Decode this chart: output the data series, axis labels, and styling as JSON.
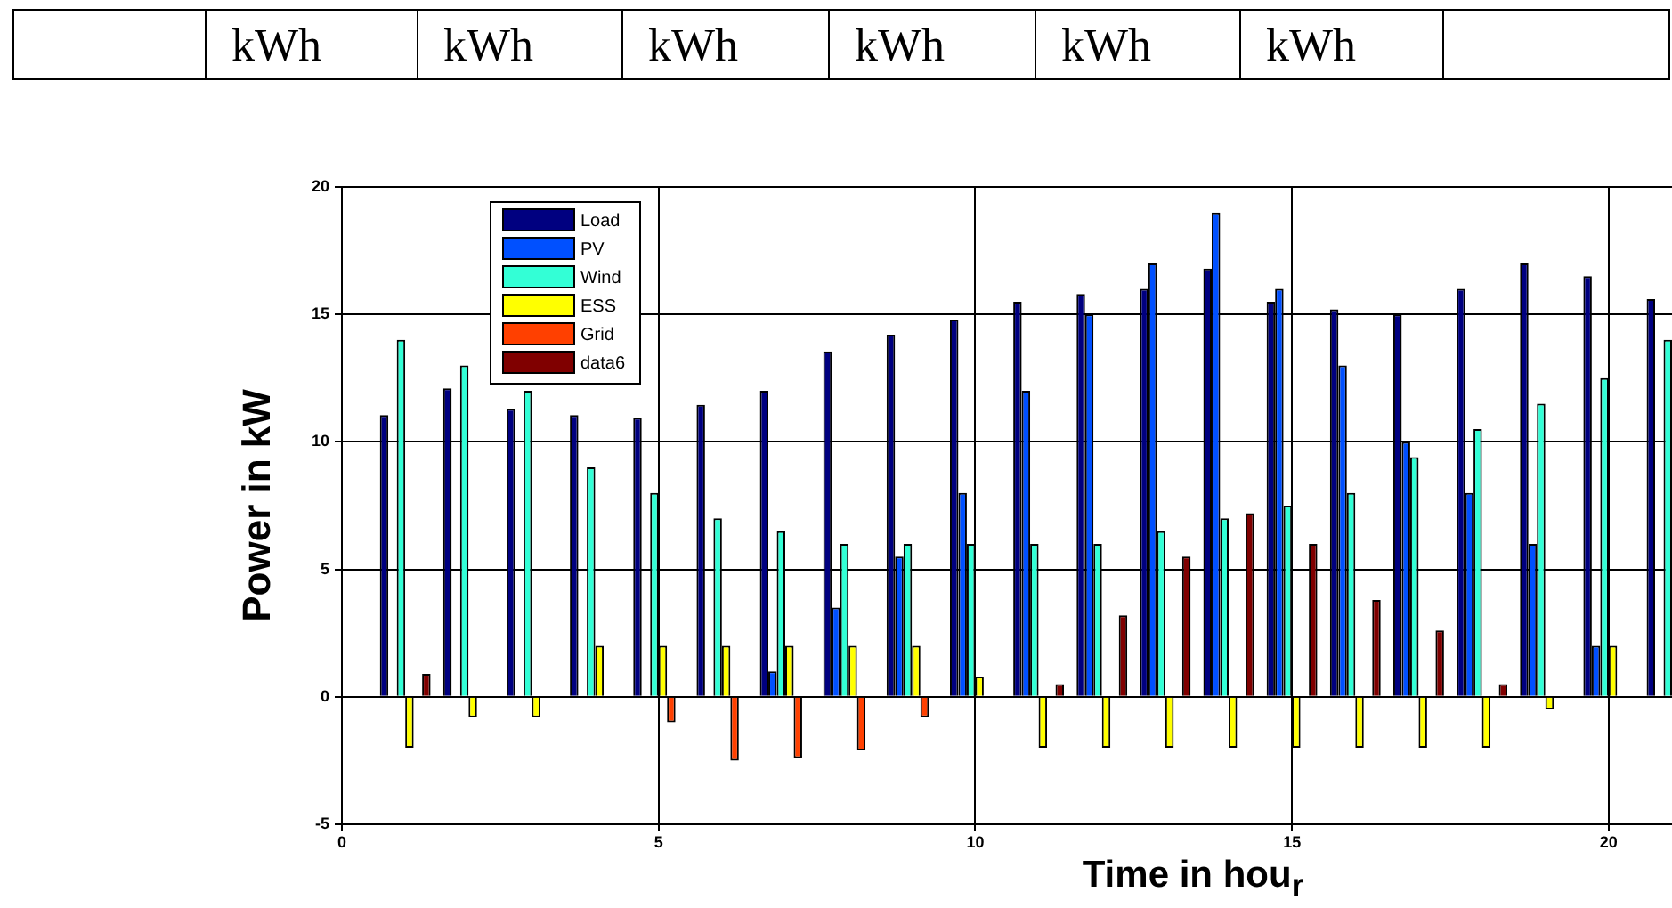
{
  "chart_data": {
    "type": "bar",
    "xlabel": "Time in hou$_{r}$",
    "ylabel": "Power in kW",
    "annotations": [
      "kWh",
      "kWh",
      "kWh",
      "kWh",
      "kWh",
      "kWh"
    ],
    "x": [
      1,
      2,
      3,
      4,
      5,
      6,
      7,
      8,
      9,
      10,
      11,
      12,
      13,
      14,
      15,
      16,
      17,
      18,
      19,
      20,
      21
    ],
    "series": [
      {
        "name": "Load",
        "color": "#000080",
        "values": [
          11.05,
          12.1,
          11.3,
          11.05,
          10.95,
          11.45,
          12,
          13.55,
          14.2,
          14.8,
          15.5,
          15.8,
          16,
          16.8,
          15.5,
          15.2,
          15,
          16,
          17,
          16.5,
          15.6
        ]
      },
      {
        "name": "PV",
        "color": "#0050ff",
        "values": [
          0,
          0,
          0,
          0,
          0,
          0,
          1,
          3.5,
          5.5,
          8,
          12,
          15,
          17,
          19,
          16,
          13,
          10,
          8,
          6,
          2,
          null
        ]
      },
      {
        "name": "Wind",
        "color": "#33ffd6",
        "values": [
          14,
          13,
          12,
          9,
          8,
          7,
          6.5,
          6,
          6,
          6,
          6,
          6,
          6.5,
          7,
          7.5,
          8,
          9.4,
          10.5,
          11.5,
          12.5,
          14
        ]
      },
      {
        "name": "ESS",
        "color": "#ffff00",
        "values": [
          -2,
          -0.8,
          -0.8,
          2,
          2,
          2,
          2,
          2,
          2,
          0.8,
          -2,
          -2,
          -2,
          -2,
          -2,
          -2,
          -2,
          -2,
          -0.5,
          2,
          null
        ]
      },
      {
        "name": "Grid",
        "color": "#ff4000",
        "values": [
          0,
          0,
          0,
          0,
          -1,
          -2.5,
          -2.4,
          -2.1,
          -0.8,
          0,
          0,
          0,
          0,
          0,
          0,
          0,
          0,
          0,
          0,
          0,
          null
        ]
      },
      {
        "name": "data6",
        "color": "#800000",
        "values": [
          0.9,
          0,
          0,
          0,
          0,
          0,
          0,
          0,
          0,
          0,
          0.5,
          3.2,
          5.5,
          7.2,
          6,
          3.8,
          2.6,
          0.5,
          0,
          0,
          null
        ]
      }
    ],
    "xlim": [
      0,
      21
    ],
    "xticks": [
      0,
      5,
      10,
      15,
      20
    ],
    "ylim": [
      -5,
      20
    ],
    "yticks": [
      -5,
      0,
      5,
      10,
      15,
      20
    ],
    "grid": true,
    "legend": "top left"
  }
}
